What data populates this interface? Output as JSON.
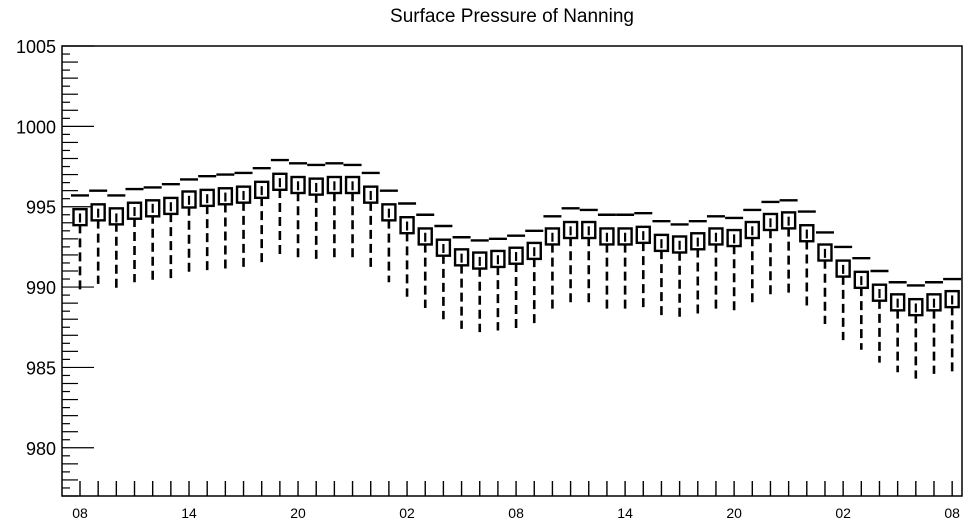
{
  "chart_data": {
    "type": "box",
    "title": "Surface Pressure of Nanning",
    "xlabel": "",
    "ylabel": "",
    "ylim": [
      977,
      1005
    ],
    "y_ticks": [
      980,
      985,
      990,
      995,
      1000,
      1005
    ],
    "x_tick_labels": [
      "08",
      "14",
      "20",
      "02",
      "08",
      "14",
      "20",
      "02",
      "08"
    ],
    "x_tick_label_steps": [
      0,
      6,
      12,
      18,
      24,
      30,
      36,
      42,
      48
    ],
    "grid": false,
    "series": [
      {
        "boxes": [
          {
            "step": 0,
            "low": 989.6,
            "q1": 993.9,
            "median": 994.3,
            "q3": 994.8,
            "high": 995.7
          },
          {
            "step": 1,
            "low": 990.2,
            "q1": 994.2,
            "median": 994.6,
            "q3": 995.1,
            "high": 996.0
          },
          {
            "step": 2,
            "low": 989.8,
            "q1": 994.0,
            "median": 994.3,
            "q3": 994.8,
            "high": 995.7
          },
          {
            "step": 3,
            "low": 990.3,
            "q1": 994.3,
            "median": 994.7,
            "q3": 995.2,
            "high": 996.1
          },
          {
            "step": 4,
            "low": 990.4,
            "q1": 994.5,
            "median": 994.9,
            "q3": 995.3,
            "high": 996.2
          },
          {
            "step": 5,
            "low": 990.5,
            "q1": 994.6,
            "median": 995.0,
            "q3": 995.5,
            "high": 996.4
          },
          {
            "step": 6,
            "low": 990.9,
            "q1": 995.0,
            "median": 995.4,
            "q3": 995.9,
            "high": 996.7
          },
          {
            "step": 7,
            "low": 991.0,
            "q1": 995.1,
            "median": 995.5,
            "q3": 996.0,
            "high": 996.9
          },
          {
            "step": 8,
            "low": 991.0,
            "q1": 995.2,
            "median": 995.6,
            "q3": 996.1,
            "high": 997.0
          },
          {
            "step": 9,
            "low": 991.1,
            "q1": 995.3,
            "median": 995.7,
            "q3": 996.2,
            "high": 997.1
          },
          {
            "step": 10,
            "low": 991.3,
            "q1": 995.6,
            "median": 996.0,
            "q3": 996.5,
            "high": 997.4
          },
          {
            "step": 11,
            "low": 991.8,
            "q1": 996.1,
            "median": 996.5,
            "q3": 997.0,
            "high": 997.9
          },
          {
            "step": 12,
            "low": 991.7,
            "q1": 995.9,
            "median": 996.3,
            "q3": 996.8,
            "high": 997.7
          },
          {
            "step": 13,
            "low": 991.7,
            "q1": 995.8,
            "median": 996.2,
            "q3": 996.7,
            "high": 997.6
          },
          {
            "step": 14,
            "low": 991.8,
            "q1": 995.9,
            "median": 996.3,
            "q3": 996.8,
            "high": 997.7
          },
          {
            "step": 15,
            "low": 991.8,
            "q1": 995.9,
            "median": 996.3,
            "q3": 996.8,
            "high": 997.6
          },
          {
            "step": 16,
            "low": 991.2,
            "q1": 995.3,
            "median": 995.7,
            "q3": 996.2,
            "high": 997.1
          },
          {
            "step": 17,
            "low": 990.3,
            "q1": 994.2,
            "median": 994.6,
            "q3": 995.1,
            "high": 996.0
          },
          {
            "step": 18,
            "low": 989.4,
            "q1": 993.4,
            "median": 993.8,
            "q3": 994.3,
            "high": 995.2
          },
          {
            "step": 19,
            "low": 988.7,
            "q1": 992.7,
            "median": 993.1,
            "q3": 993.6,
            "high": 994.5
          },
          {
            "step": 20,
            "low": 988.0,
            "q1": 992.0,
            "median": 992.4,
            "q3": 992.9,
            "high": 993.8
          },
          {
            "step": 21,
            "low": 987.4,
            "q1": 991.4,
            "median": 991.8,
            "q3": 992.3,
            "high": 993.1
          },
          {
            "step": 22,
            "low": 987.2,
            "q1": 991.2,
            "median": 991.6,
            "q3": 992.1,
            "high": 992.9
          },
          {
            "step": 23,
            "low": 987.3,
            "q1": 991.3,
            "median": 991.7,
            "q3": 992.2,
            "high": 993.0
          },
          {
            "step": 24,
            "low": 987.4,
            "q1": 991.5,
            "median": 991.9,
            "q3": 992.4,
            "high": 993.2
          },
          {
            "step": 25,
            "low": 987.7,
            "q1": 991.8,
            "median": 992.2,
            "q3": 992.7,
            "high": 993.5
          },
          {
            "step": 26,
            "low": 988.6,
            "q1": 992.7,
            "median": 993.1,
            "q3": 993.6,
            "high": 994.4
          },
          {
            "step": 27,
            "low": 989.0,
            "q1": 993.1,
            "median": 993.5,
            "q3": 994.0,
            "high": 994.9
          },
          {
            "step": 28,
            "low": 989.0,
            "q1": 993.1,
            "median": 993.5,
            "q3": 994.0,
            "high": 994.8
          },
          {
            "step": 29,
            "low": 988.6,
            "q1": 992.7,
            "median": 993.1,
            "q3": 993.6,
            "high": 994.5
          },
          {
            "step": 30,
            "low": 988.6,
            "q1": 992.7,
            "median": 993.1,
            "q3": 993.6,
            "high": 994.5
          },
          {
            "step": 31,
            "low": 988.7,
            "q1": 992.8,
            "median": 993.2,
            "q3": 993.7,
            "high": 994.6
          },
          {
            "step": 32,
            "low": 988.1,
            "q1": 992.3,
            "median": 992.7,
            "q3": 993.2,
            "high": 994.1
          },
          {
            "step": 33,
            "low": 988.0,
            "q1": 992.2,
            "median": 992.6,
            "q3": 993.1,
            "high": 993.9
          },
          {
            "step": 34,
            "low": 988.2,
            "q1": 992.4,
            "median": 992.8,
            "q3": 993.3,
            "high": 994.1
          },
          {
            "step": 35,
            "low": 988.5,
            "q1": 992.7,
            "median": 993.1,
            "q3": 993.6,
            "high": 994.4
          },
          {
            "step": 36,
            "low": 988.4,
            "q1": 992.6,
            "median": 993.0,
            "q3": 993.5,
            "high": 994.3
          },
          {
            "step": 37,
            "low": 988.9,
            "q1": 993.1,
            "median": 993.5,
            "q3": 994.0,
            "high": 994.8
          },
          {
            "step": 38,
            "low": 989.3,
            "q1": 993.6,
            "median": 994.0,
            "q3": 994.5,
            "high": 995.3
          },
          {
            "step": 39,
            "low": 989.5,
            "q1": 993.7,
            "median": 994.1,
            "q3": 994.6,
            "high": 995.4
          },
          {
            "step": 40,
            "low": 988.8,
            "q1": 992.9,
            "median": 993.3,
            "q3": 993.8,
            "high": 994.7
          },
          {
            "step": 41,
            "low": 987.7,
            "q1": 991.7,
            "median": 992.1,
            "q3": 992.6,
            "high": 993.4
          },
          {
            "step": 42,
            "low": 986.7,
            "q1": 990.7,
            "median": 991.1,
            "q3": 991.6,
            "high": 992.5
          },
          {
            "step": 43,
            "low": 986.1,
            "q1": 990.0,
            "median": 990.4,
            "q3": 990.9,
            "high": 991.8
          },
          {
            "step": 44,
            "low": 985.3,
            "q1": 989.2,
            "median": 989.6,
            "q3": 990.1,
            "high": 991.0
          },
          {
            "step": 45,
            "low": 984.7,
            "q1": 988.6,
            "median": 989.0,
            "q3": 989.5,
            "high": 990.3
          },
          {
            "step": 46,
            "low": 984.3,
            "q1": 988.3,
            "median": 988.7,
            "q3": 989.2,
            "high": 990.1
          },
          {
            "step": 47,
            "low": 984.6,
            "q1": 988.6,
            "median": 989.0,
            "q3": 989.5,
            "high": 990.3
          },
          {
            "step": 48,
            "low": 984.7,
            "q1": 988.8,
            "median": 989.2,
            "q3": 989.7,
            "high": 990.5
          }
        ]
      }
    ]
  },
  "colors": {
    "stroke": "#000000",
    "background": "#ffffff"
  }
}
